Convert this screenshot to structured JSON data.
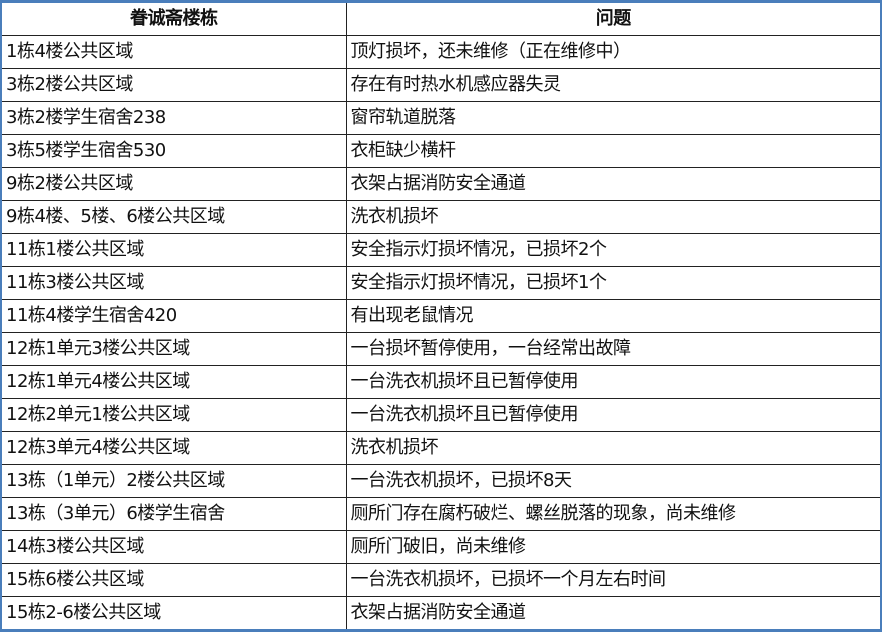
{
  "table": {
    "headers": [
      "眷诚斋楼栋",
      "问题"
    ],
    "rows": [
      [
        "1栋4楼公共区域",
        "顶灯损坏，还未维修（正在维修中）"
      ],
      [
        "3栋2楼公共区域",
        "存在有时热水机感应器失灵"
      ],
      [
        "3栋2楼学生宿舍238",
        "窗帘轨道脱落"
      ],
      [
        "3栋5楼学生宿舍530",
        "衣柜缺少横杆"
      ],
      [
        "9栋2楼公共区域",
        "衣架占据消防安全通道"
      ],
      [
        "9栋4楼、5楼、6楼公共区域",
        "洗衣机损坏"
      ],
      [
        "11栋1楼公共区域",
        "安全指示灯损坏情况，已损坏2个"
      ],
      [
        "11栋3楼公共区域",
        "安全指示灯损坏情况，已损坏1个"
      ],
      [
        "11栋4楼学生宿舍420",
        "有出现老鼠情况"
      ],
      [
        "12栋1单元3楼公共区域",
        "一台损坏暂停使用，一台经常出故障"
      ],
      [
        "12栋1单元4楼公共区域",
        "一台洗衣机损坏且已暂停使用"
      ],
      [
        "12栋2单元1楼公共区域",
        "一台洗衣机损坏且已暂停使用"
      ],
      [
        "12栋3单元4楼公共区域",
        "洗衣机损坏"
      ],
      [
        "13栋（1单元）2楼公共区域",
        "一台洗衣机损坏，已损坏8天"
      ],
      [
        "13栋（3单元）6楼学生宿舍",
        "厕所门存在腐朽破烂、螺丝脱落的现象，尚未维修"
      ],
      [
        "14栋3楼公共区域",
        "厕所门破旧，尚未维修"
      ],
      [
        "15栋6楼公共区域",
        "一台洗衣机损坏，已损坏一个月左右时间"
      ],
      [
        "15栋2-6楼公共区域",
        "衣架占据消防安全通道"
      ]
    ]
  },
  "colors": {
    "frame": "#4a7ebb",
    "grid": "#222222"
  }
}
